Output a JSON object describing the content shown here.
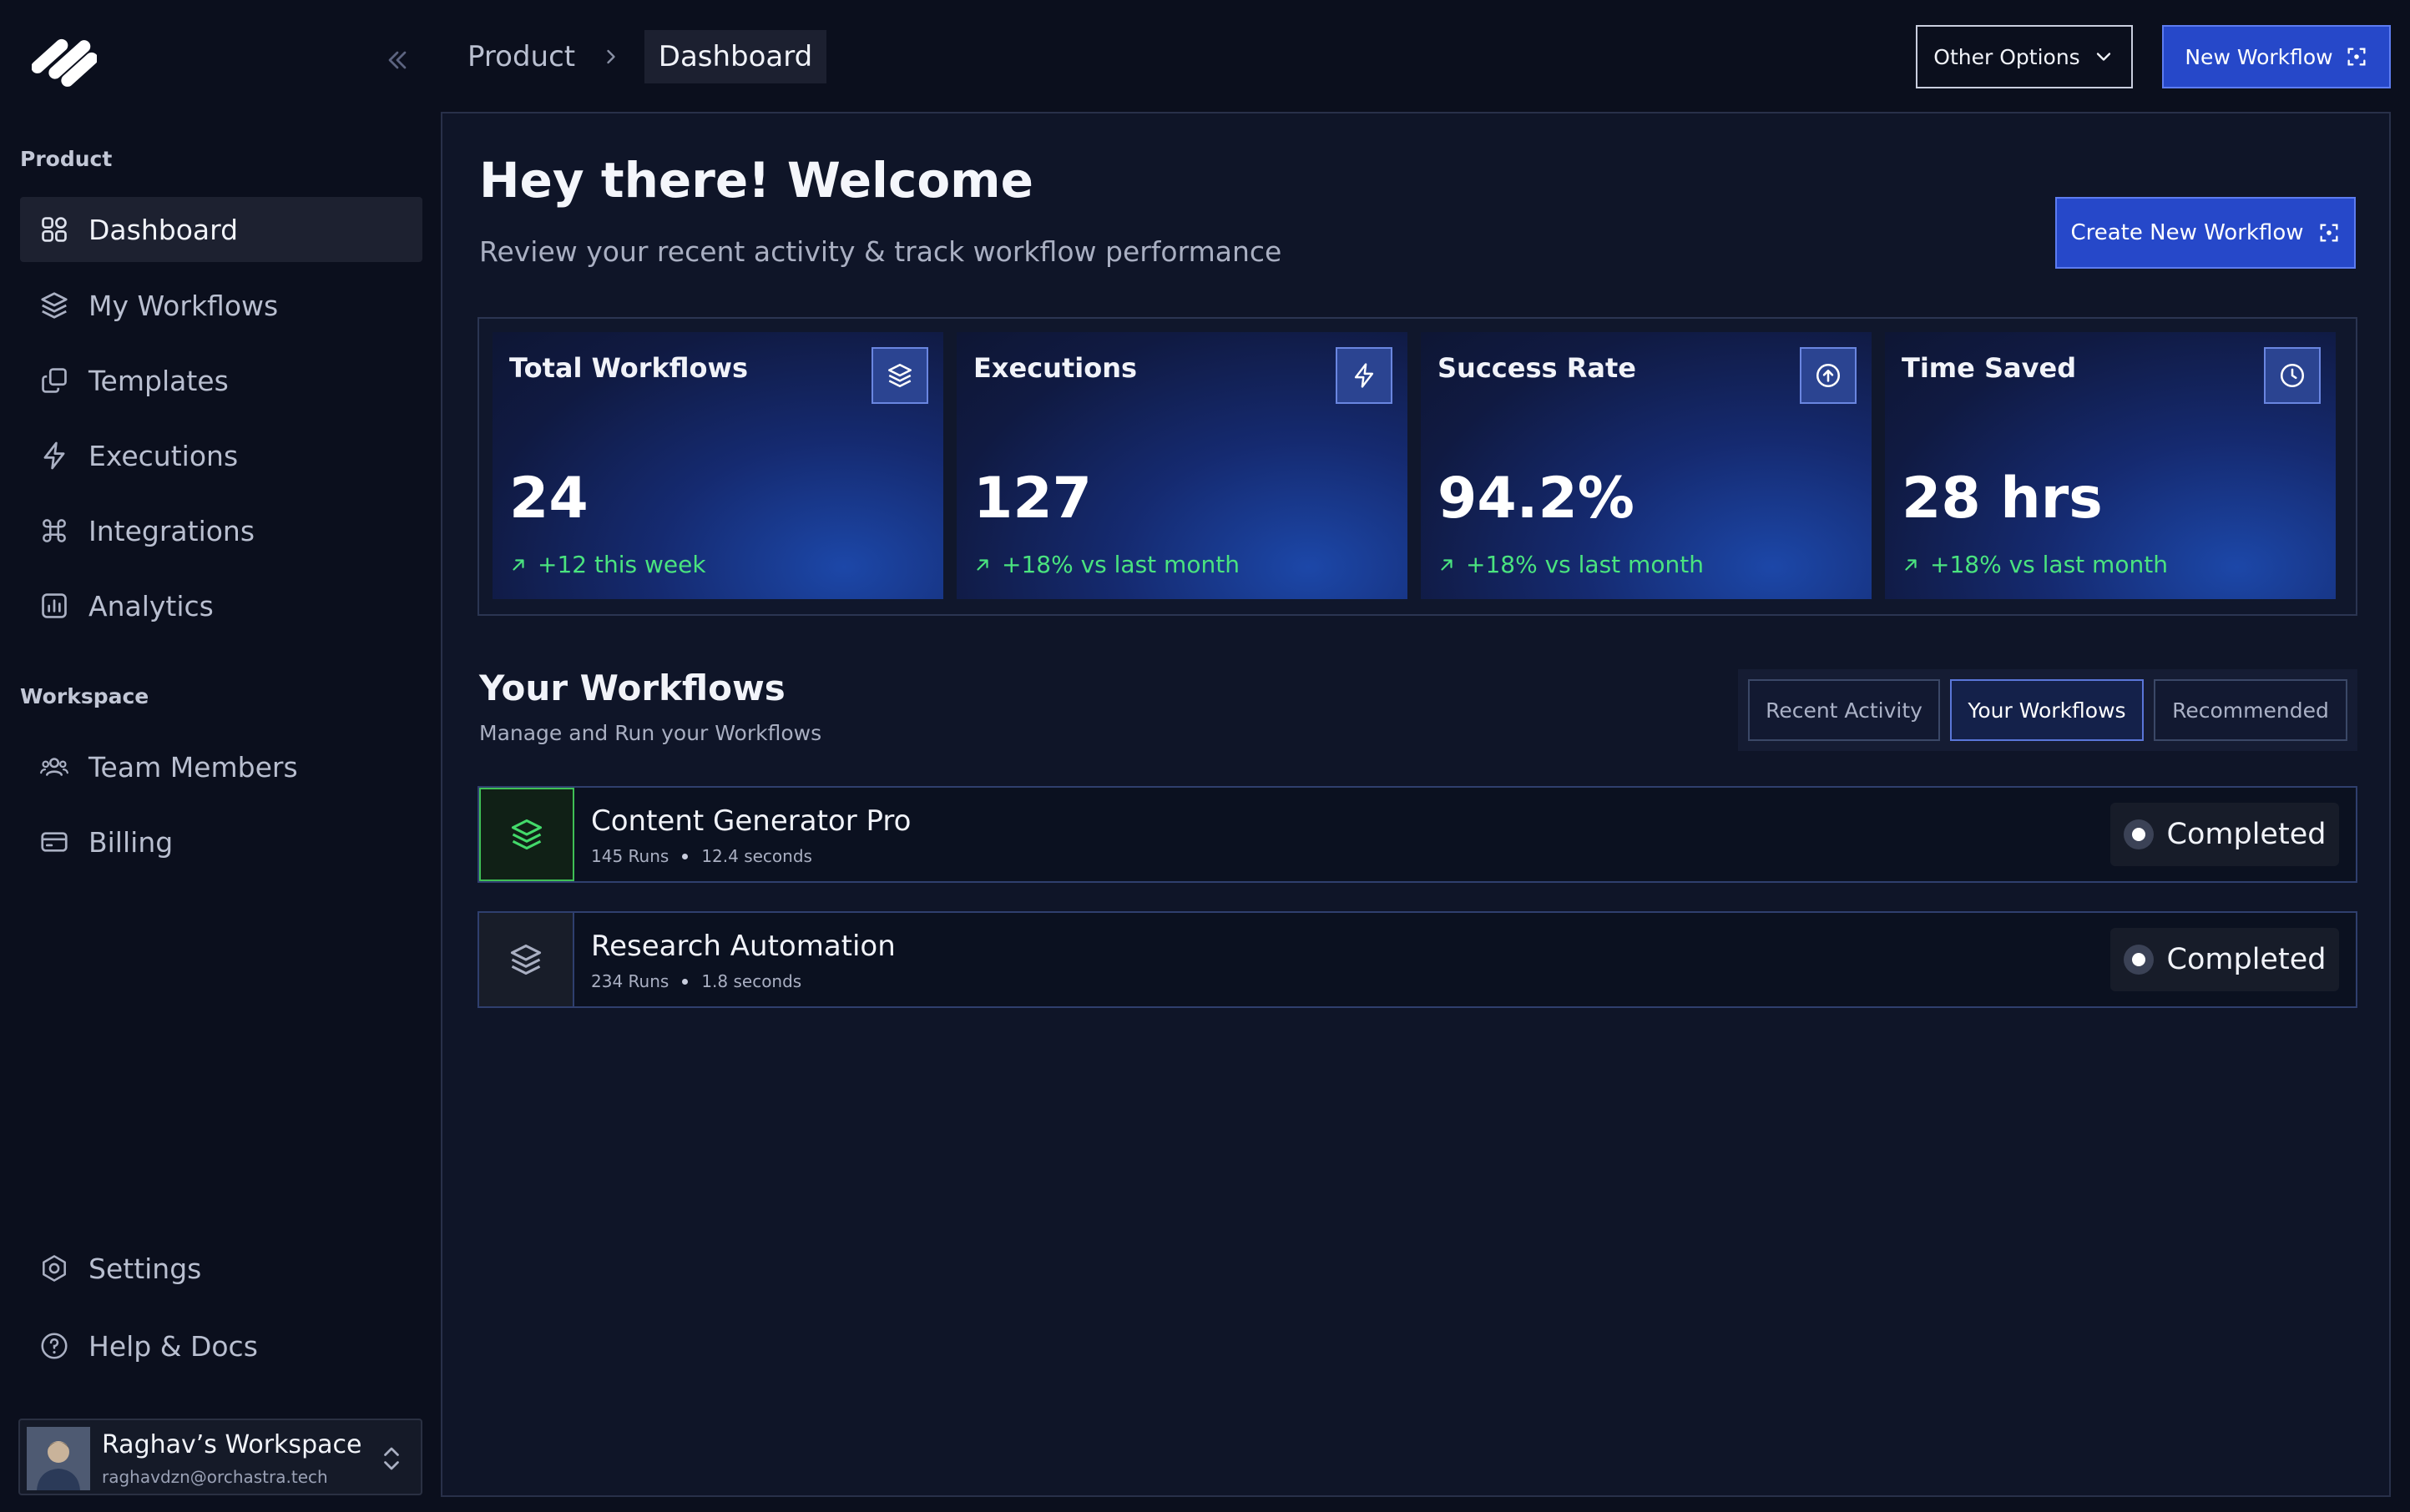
{
  "colors": {
    "accent": "#2648c9",
    "background": "#0b0f1d",
    "panel": "#0f1528",
    "positive": "#4ae37f",
    "active_icon": "#43d96a"
  },
  "sidebar": {
    "logo_icon": "stripes-logo-icon",
    "collapse_icon": "chevrons-left-icon",
    "section_product": "Product",
    "product_items": [
      {
        "label": "Dashboard",
        "icon": "grid-icon",
        "active": true
      },
      {
        "label": "My Workflows",
        "icon": "layers-icon"
      },
      {
        "label": "Templates",
        "icon": "copy-icon"
      },
      {
        "label": "Executions",
        "icon": "lightning-icon"
      },
      {
        "label": "Integrations",
        "icon": "command-icon"
      },
      {
        "label": "Analytics",
        "icon": "bar-chart-icon"
      }
    ],
    "section_workspace": "Workspace",
    "workspace_items": [
      {
        "label": "Team Members",
        "icon": "users-icon"
      },
      {
        "label": "Billing",
        "icon": "credit-card-icon"
      }
    ],
    "bottom_items": [
      {
        "label": "Settings",
        "icon": "settings-icon"
      },
      {
        "label": "Help & Docs",
        "icon": "help-circle-icon"
      }
    ],
    "workspace": {
      "name": "Raghav’s Workspace",
      "email": "raghavdzn@orchastra.tech",
      "icon": "chevrons-up-down-icon"
    }
  },
  "header": {
    "breadcrumb": [
      "Product",
      "Dashboard"
    ],
    "other_options": "Other Options",
    "new_workflow": "New Workflow"
  },
  "main": {
    "title": "Hey there! Welcome",
    "subtitle": "Review your recent activity & track workflow performance",
    "create_button": "Create New Workflow",
    "stats": [
      {
        "title": "Total Workflows",
        "value": "24",
        "delta": "+12 this week",
        "icon": "layers-icon"
      },
      {
        "title": "Executions",
        "value": "127",
        "delta": "+18% vs last month",
        "icon": "lightning-icon"
      },
      {
        "title": "Success Rate",
        "value": "94.2%",
        "delta": "+18% vs last month",
        "icon": "arrow-up-circle-icon"
      },
      {
        "title": "Time Saved",
        "value": "28 hrs",
        "delta": "+18% vs last month",
        "icon": "clock-icon"
      }
    ],
    "workflows_title": "Your Workflows",
    "workflows_subtitle": "Manage and Run your Workflows",
    "tabs": [
      {
        "label": "Recent Activity"
      },
      {
        "label": "Your Workflows",
        "active": true
      },
      {
        "label": "Recommended"
      }
    ],
    "workflows": [
      {
        "name": "Content Generator Pro",
        "runs": "145 Runs",
        "duration": "12.4 seconds",
        "status": "Completed",
        "icon": "layers-icon"
      },
      {
        "name": "Research Automation",
        "runs": "234 Runs",
        "duration": "1.8 seconds",
        "status": "Completed",
        "icon": "layers-icon"
      }
    ]
  }
}
